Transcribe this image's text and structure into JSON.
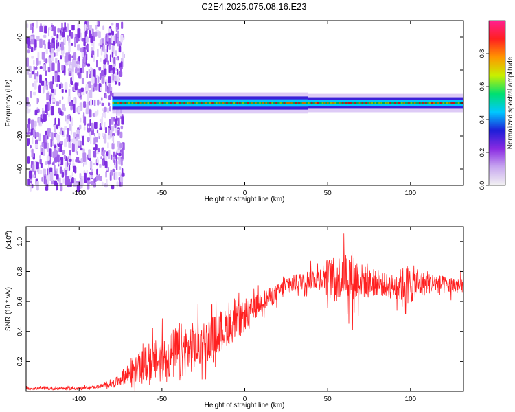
{
  "title": "C2E4.2025.075.08.16.E23",
  "spectrogram": {
    "xlabel": "Height of straight line (km)",
    "ylabel": "Frequency (Hz)",
    "xticks": [
      -100,
      -50,
      0,
      50,
      100
    ],
    "yticks": [
      -40,
      -20,
      0,
      20,
      40
    ],
    "xlim": [
      -132,
      132
    ],
    "ylim": [
      -50,
      50
    ],
    "colorbar": {
      "label": "Normalized spectral amplitude",
      "ticks": [
        "0.0",
        "0.2",
        "0.4",
        "0.6",
        "0.8"
      ],
      "range": [
        0,
        1
      ],
      "colors": [
        "#f2f2f2",
        "#c8a8f0",
        "#8a2be2",
        "#1e1ed8",
        "#00c8ff",
        "#00e070",
        "#c8f000",
        "#ff9600",
        "#ff2020",
        "#ff2090"
      ]
    }
  },
  "chart_data": [
    {
      "type": "heatmap",
      "title": "C2E4.2025.075.08.16.E23",
      "xlabel": "Height of straight line (km)",
      "ylabel": "Frequency (Hz)",
      "xlim": [
        -132,
        132
      ],
      "ylim": [
        -50,
        50
      ],
      "grid": false,
      "description_of_content": "broadband noise region x<-78; narrow band near 0 Hz for x>-78 with peaks along 0 Hz",
      "noise_region_x": [
        -132,
        -78
      ],
      "band_segments": [
        {
          "x": [
            -80,
            38
          ],
          "halfwidth_hz": [
            2.5,
            4
          ]
        },
        {
          "x": [
            38,
            132
          ],
          "halfwidth_hz": [
            2.5,
            3.5
          ]
        }
      ],
      "peak_line_hz": 0
    },
    {
      "type": "line",
      "xlabel": "Height of straight line (km)",
      "ylabel": "SNR (10 * v/v)",
      "yscale_note": "(x10^4)",
      "xlim": [
        -132,
        132
      ],
      "ylim": [
        0,
        1.1
      ],
      "yticks": [
        0.2,
        0.4,
        0.6,
        0.8,
        1.0
      ],
      "xticks": [
        -100,
        -50,
        0,
        50,
        100
      ],
      "series": [
        {
          "color": "#ff2020",
          "x": [
            -132,
            -120,
            -100,
            -90,
            -80,
            -75,
            -70,
            -65,
            -60,
            -55,
            -50,
            -45,
            -40,
            -35,
            -30,
            -25,
            -20,
            -15,
            -10,
            -5,
            0,
            5,
            10,
            15,
            20,
            25,
            30,
            35,
            40,
            45,
            50,
            55,
            60,
            65,
            70,
            75,
            80,
            85,
            90,
            95,
            100,
            105,
            110,
            115,
            120,
            125,
            132
          ],
          "mean": [
            0.02,
            0.02,
            0.02,
            0.03,
            0.05,
            0.08,
            0.12,
            0.15,
            0.18,
            0.2,
            0.22,
            0.24,
            0.26,
            0.28,
            0.3,
            0.33,
            0.36,
            0.4,
            0.43,
            0.46,
            0.5,
            0.55,
            0.6,
            0.63,
            0.66,
            0.7,
            0.72,
            0.74,
            0.75,
            0.76,
            0.77,
            0.76,
            0.78,
            0.76,
            0.74,
            0.72,
            0.72,
            0.71,
            0.7,
            0.71,
            0.72,
            0.71,
            0.72,
            0.72,
            0.71,
            0.71,
            0.7
          ],
          "spread": [
            0.01,
            0.01,
            0.01,
            0.01,
            0.02,
            0.04,
            0.08,
            0.1,
            0.12,
            0.14,
            0.15,
            0.16,
            0.2,
            0.18,
            0.16,
            0.15,
            0.14,
            0.14,
            0.12,
            0.12,
            0.1,
            0.08,
            0.07,
            0.06,
            0.06,
            0.06,
            0.06,
            0.06,
            0.07,
            0.08,
            0.12,
            0.14,
            0.16,
            0.2,
            0.12,
            0.1,
            0.08,
            0.08,
            0.08,
            0.12,
            0.14,
            0.1,
            0.07,
            0.07,
            0.06,
            0.06,
            0.06
          ]
        }
      ]
    }
  ],
  "snr": {
    "xlabel": "Height of straight line (km)",
    "ylabel": "SNR (10 * v/v)",
    "scale_label": "(x10",
    "scale_exp": "4",
    "scale_close": ")",
    "xticks": [
      -100,
      -50,
      0,
      50,
      100
    ],
    "yticks": [
      "0.2",
      "0.4",
      "0.6",
      "0.8",
      "1.0"
    ]
  }
}
